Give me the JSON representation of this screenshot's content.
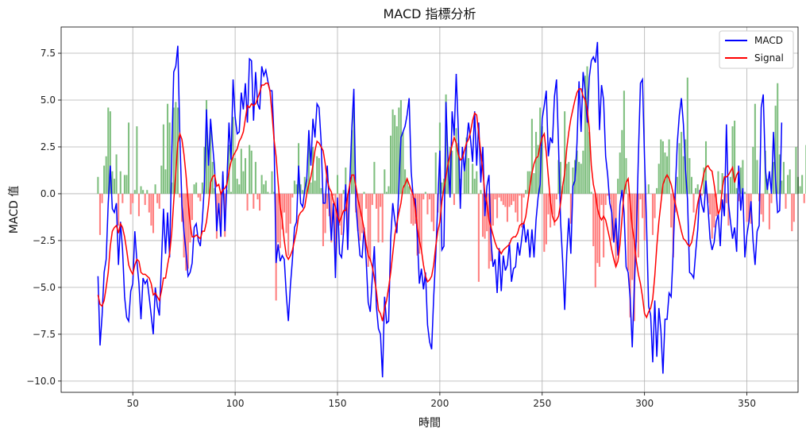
{
  "chart_data": {
    "type": "line",
    "title": "MACD 指標分析",
    "xlabel": "時間",
    "ylabel": "MACD 值",
    "xlim": [
      15,
      375
    ],
    "ylim": [
      -10.6,
      8.9
    ],
    "x_ticks": [
      50,
      100,
      150,
      200,
      250,
      300,
      350
    ],
    "y_ticks": [
      -10.0,
      -7.5,
      -5.0,
      -2.5,
      0.0,
      2.5,
      5.0,
      7.5
    ],
    "x_tick_labels": [
      "50",
      "100",
      "150",
      "200",
      "250",
      "300",
      "350"
    ],
    "y_tick_labels": [
      "−10.0",
      "−7.5",
      "−5.0",
      "−2.5",
      "0.0",
      "2.5",
      "5.0",
      "7.5"
    ],
    "grid": true,
    "legend_position": "top-right",
    "x_start": 33,
    "series": [
      {
        "name": "MACD",
        "color": "#0000ff",
        "type": "line",
        "values": [
          -4.4,
          -8.1,
          -6.5,
          -4.2,
          -3.5,
          -0.5,
          1.5,
          -0.8,
          -1.0,
          -0.5,
          -3.8,
          -1.5,
          -3.0,
          -5.5,
          -6.6,
          -6.8,
          -5.2,
          -4.8,
          -2.0,
          -3.6,
          -4.8,
          -6.7,
          -4.5,
          -4.8,
          -4.6,
          -5.5,
          -6.5,
          -7.5,
          -5.0,
          -6.0,
          -6.5,
          -3.7,
          -0.8,
          -3.2,
          -1.0,
          -3.4,
          2.0,
          6.5,
          6.8,
          7.9,
          3.0,
          -0.6,
          -2.0,
          -3.1,
          -4.4,
          -4.2,
          -3.7,
          -1.8,
          -1.6,
          -2.5,
          -2.8,
          -1.4,
          0.5,
          4.5,
          1.5,
          4.0,
          2.6,
          1.3,
          -2.0,
          -0.5,
          -2.3,
          1.2,
          -2.0,
          0.7,
          3.8,
          1.8,
          6.1,
          4.1,
          3.2,
          3.3,
          5.4,
          4.5,
          5.9,
          3.8,
          7.2,
          7.1,
          3.9,
          6.5,
          4.8,
          4.5,
          6.8,
          6.3,
          6.6,
          6.0,
          5.5,
          5.5,
          3.0,
          -3.7,
          -2.7,
          -3.6,
          -3.3,
          -3.5,
          -5.4,
          -6.8,
          -4.9,
          -3.5,
          -1.8,
          -1.5,
          1.5,
          -0.5,
          -0.7,
          0.2,
          0.8,
          3.4,
          1.5,
          4.0,
          3.0,
          4.8,
          4.6,
          2.8,
          -0.5,
          -0.5,
          1.5,
          -0.5,
          -2.5,
          -0.5,
          -4.5,
          -0.2,
          -3.2,
          -3.4,
          -2.0,
          0.5,
          -3.0,
          0.5,
          3.5,
          5.6,
          -0.6,
          -2.0,
          -3.3,
          -3.4,
          -1.8,
          -3.5,
          -5.8,
          -6.3,
          -4.5,
          -2.8,
          -6.0,
          -7.2,
          -7.5,
          -9.8,
          -5.5,
          -6.9,
          -6.8,
          -2.4,
          -0.5,
          -1.4,
          -2.1,
          0.4,
          3.0,
          3.3,
          3.6,
          4.2,
          5.1,
          1.2,
          -0.2,
          -0.3,
          -2.3,
          -4.8,
          -4.0,
          -5.1,
          -4.2,
          -7.0,
          -7.9,
          -8.3,
          -5.5,
          -3.3,
          -0.5,
          2.3,
          -3.0,
          -2.8,
          4.9,
          1.7,
          -0.2,
          4.4,
          3.1,
          6.4,
          3.5,
          -0.8,
          2.5,
          1.2,
          2.6,
          3.8,
          2.9,
          1.7,
          4.4,
          1.5,
          3.8,
          0.6,
          2.5,
          -1.2,
          0.4,
          1.0,
          -2.5,
          -3.9,
          -3.5,
          -5.3,
          -2.9,
          -5.2,
          -3.3,
          -4.1,
          -3.8,
          -2.6,
          -4.7,
          -4.0,
          -3.9,
          -2.6,
          -3.3,
          -2.4,
          -1.5,
          -2.6,
          -1.9,
          -3.4,
          -1.9,
          -3.4,
          -1.4,
          -0.2,
          0.5,
          4.0,
          4.7,
          5.5,
          2.0,
          3.0,
          2.7,
          5.2,
          6.1,
          2.5,
          -1.5,
          -3.6,
          -6.2,
          -3.2,
          -1.3,
          -3.2,
          0.4,
          0.7,
          2.7,
          6.0,
          3.3,
          6.5,
          5.5,
          3.8,
          6.2,
          7.1,
          7.3,
          7.0,
          8.1,
          3.4,
          5.8,
          5.0,
          2.0,
          1.0,
          -0.5,
          -1.0,
          -2.6,
          -1.3,
          -3.3,
          -0.6,
          0.2,
          -1.0,
          -3.9,
          -4.2,
          -5.6,
          -8.2,
          -5.0,
          -2.2,
          2.0,
          5.9,
          6.1,
          1.9,
          -1.7,
          -6.0,
          -6.5,
          -9.0,
          -5.7,
          -8.7,
          -6.1,
          -7.3,
          -9.6,
          -6.7,
          -6.7,
          -5.3,
          -5.5,
          -3.1,
          0.1,
          2.7,
          4.2,
          5.1,
          3.7,
          1.3,
          -0.3,
          -4.2,
          -4.3,
          -4.5,
          -3.1,
          -1.9,
          0.2,
          -0.6,
          -1.0,
          0.7,
          -0.7,
          -2.4,
          -3.0,
          -2.6,
          -1.5,
          -1.1,
          -2.8,
          -0.3,
          -1.2,
          3.7,
          -0.5,
          -1.5,
          -2.4,
          -1.8,
          -3.1,
          1.5,
          -0.9,
          0.3,
          -3.4,
          -2.2,
          -1.5,
          -0.4,
          -2.5,
          -3.8,
          -2.0,
          -1.7,
          4.6,
          5.3,
          1.4,
          0.2,
          1.2,
          0.0,
          3.3,
          0.8,
          -1.0,
          -0.9,
          3.8
        ]
      },
      {
        "name": "Signal",
        "color": "#ff0000",
        "type": "line",
        "values": [
          -5.4,
          -5.9,
          -6.0,
          -5.7,
          -5.0,
          -4.2,
          -2.8,
          -2.0,
          -1.8,
          -1.7,
          -2.1,
          -1.6,
          -1.8,
          -2.3,
          -3.0,
          -3.8,
          -4.1,
          -4.3,
          -3.8,
          -3.5,
          -3.6,
          -4.2,
          -4.3,
          -4.3,
          -4.4,
          -4.5,
          -4.8,
          -5.4,
          -5.3,
          -5.5,
          -5.7,
          -5.2,
          -4.5,
          -4.5,
          -3.8,
          -3.2,
          -2.1,
          -0.4,
          1.1,
          2.7,
          3.2,
          2.9,
          2.1,
          1.0,
          -0.4,
          -1.6,
          -2.3,
          -2.3,
          -2.2,
          -2.3,
          -2.4,
          -2.0,
          -2.0,
          -1.5,
          -0.6,
          0.6,
          0.9,
          1.0,
          0.4,
          0.5,
          0.0,
          0.2,
          0.3,
          0.5,
          1.2,
          1.7,
          2.0,
          2.2,
          2.4,
          2.8,
          3.0,
          3.3,
          4.0,
          4.7,
          4.6,
          4.8,
          4.7,
          4.8,
          5.1,
          5.4,
          5.8,
          5.8,
          5.9,
          5.9,
          5.5,
          4.3,
          2.9,
          2.0,
          0.6,
          -0.7,
          -1.4,
          -2.5,
          -3.3,
          -3.5,
          -3.3,
          -3.0,
          -2.5,
          -2.0,
          -1.2,
          -1.0,
          -0.9,
          -0.7,
          0.0,
          0.5,
          0.9,
          1.5,
          2.3,
          2.8,
          2.7,
          2.5,
          2.3,
          1.6,
          0.7,
          0.3,
          0.1,
          -0.4,
          -0.7,
          -1.2,
          -1.5,
          -1.2,
          -0.9,
          -0.9,
          -0.1,
          0.5,
          1.0,
          1.0,
          0.4,
          -0.3,
          -0.8,
          -1.3,
          -1.9,
          -2.7,
          -3.3,
          -3.5,
          -3.9,
          -4.5,
          -5.2,
          -6.2,
          -6.4,
          -6.8,
          -6.1,
          -5.7,
          -5.0,
          -4.2,
          -3.2,
          -2.2,
          -1.6,
          -1.0,
          -0.5,
          0.3,
          0.5,
          0.8,
          0.5,
          0.2,
          -0.1,
          -0.8,
          -1.8,
          -2.5,
          -3.0,
          -3.8,
          -4.4,
          -4.7,
          -4.6,
          -4.4,
          -3.8,
          -2.8,
          -2.0,
          -1.5,
          -0.4,
          0.3,
          0.9,
          1.6,
          2.1,
          2.6,
          3.0,
          2.7,
          2.1,
          1.8,
          1.9,
          2.3,
          2.7,
          2.9,
          3.3,
          3.9,
          4.3,
          4.2,
          3.2,
          2.2,
          1.2,
          0.0,
          -0.5,
          -1.4,
          -1.8,
          -2.2,
          -2.6,
          -2.9,
          -3.0,
          -3.2,
          -3.0,
          -2.9,
          -2.8,
          -2.7,
          -2.4,
          -2.3,
          -2.3,
          -2.1,
          -1.7,
          -1.6,
          -1.6,
          -1.2,
          -0.4,
          0.4,
          1.1,
          1.6,
          1.9,
          2.0,
          2.6,
          3.0,
          3.2,
          2.2,
          0.9,
          -0.4,
          -1.2,
          -1.5,
          -1.4,
          -1.2,
          -0.5,
          0.4,
          1.1,
          2.4,
          3.3,
          4.0,
          4.5,
          5.0,
          5.4,
          5.6,
          5.6,
          5.2,
          5.0,
          4.5,
          3.5,
          1.5,
          0.5,
          0.0,
          -0.8,
          -1.2,
          -1.4,
          -1.2,
          -1.4,
          -1.9,
          -2.4,
          -3.0,
          -3.5,
          -3.9,
          -3.6,
          -2.7,
          -1.3,
          0.1,
          0.6,
          0.8,
          -0.5,
          -1.8,
          -2.5,
          -3.6,
          -4.3,
          -4.8,
          -5.5,
          -6.4,
          -6.6,
          -6.3,
          -6.1,
          -5.6,
          -4.4,
          -2.8,
          -1.5,
          -0.5,
          0.5,
          0.8,
          1.0,
          0.8,
          0.5,
          0.0,
          -0.5,
          -1.0,
          -1.5,
          -2.0,
          -2.4,
          -2.5,
          -2.7,
          -2.8,
          -2.6,
          -2.0,
          -1.2,
          -0.5,
          0.0,
          0.5,
          1.1,
          1.4,
          1.5,
          1.3,
          1.2,
          0.5,
          -0.3,
          -1.1,
          -0.8,
          0.3,
          0.9,
          0.9,
          1.0,
          1.2,
          1.4,
          0.6,
          1.0,
          1.2
        ]
      },
      {
        "name": "",
        "type": "histogram",
        "positive_color": "#7fbf7f",
        "negative_color": "#ff7f7f",
        "values": [
          0.9,
          -2.2,
          -0.5,
          1.5,
          2.0,
          4.6,
          4.4,
          1.2,
          0.8,
          2.1,
          -1.7,
          1.2,
          -0.5,
          1.0,
          1.0,
          3.8,
          -1.1,
          -0.5,
          0.2,
          3.6,
          -1.2,
          0.4,
          0.2,
          -0.6,
          0.2,
          -1.0,
          -1.7,
          -2.1,
          0.5,
          -0.5,
          -0.8,
          1.5,
          3.7,
          1.3,
          4.8,
          3.8,
          0.6,
          4.6,
          4.9,
          4.6,
          -0.2,
          -1.5,
          -3.4,
          -4.1,
          -4.0,
          -2.6,
          -1.4,
          0.5,
          0.6,
          -0.2,
          -0.4,
          0.6,
          2.5,
          5.0,
          2.1,
          3.4,
          1.7,
          0.3,
          -2.4,
          -1.0,
          -2.3,
          1.0,
          -2.3,
          0.2,
          2.6,
          0.1,
          4.1,
          1.9,
          0.8,
          0.5,
          2.4,
          1.2,
          1.9,
          -0.9,
          2.6,
          2.3,
          -0.8,
          1.7,
          -0.3,
          -0.9,
          1.0,
          0.5,
          0.7,
          0.1,
          0.0,
          1.2,
          0.1,
          -5.7,
          -2.6,
          -2.9,
          -1.9,
          -1.0,
          -2.1,
          -3.3,
          -1.6,
          -0.2,
          0.7,
          0.5,
          2.7,
          0.5,
          0.2,
          0.9,
          0.8,
          2.9,
          0.6,
          2.5,
          0.7,
          2.0,
          1.9,
          0.3,
          -2.8,
          -2.1,
          -0.8,
          -1.2,
          -2.6,
          -0.1,
          -3.8,
          1.0,
          -1.7,
          -2.2,
          0.2,
          1.4,
          -2.9,
          0.0,
          3.4,
          4.6,
          -1.0,
          -2.0,
          -2.5,
          -2.1,
          0.1,
          -0.8,
          -3.9,
          -3.6,
          -0.6,
          1.7,
          -0.8,
          -2.6,
          -0.7,
          -2.6,
          1.3,
          0.1,
          0.4,
          3.1,
          4.5,
          4.2,
          3.6,
          4.6,
          5.0,
          3.3,
          1.3,
          0.8,
          0.4,
          -1.6,
          -1.7,
          -1.6,
          -3.3,
          -3.2,
          -3.0,
          -0.3,
          0.1,
          -1.1,
          -0.3,
          -1.5,
          -2.0,
          2.2,
          -1.0,
          3.8,
          0.6,
          0.8,
          5.3,
          1.8,
          2.5,
          2.3,
          -0.6,
          3.5,
          2.7,
          0.8,
          0.0,
          1.2,
          3.0,
          1.9,
          0.0,
          1.6,
          0.8,
          1.2,
          -4.7,
          0.2,
          -2.3,
          -2.4,
          -2.0,
          -4.0,
          -3.6,
          -1.7,
          -0.3,
          -1.3,
          -0.2,
          -0.4,
          -0.6,
          -0.7,
          -1.5,
          -0.7,
          -0.6,
          -0.4,
          -1.0,
          -1.5,
          -0.1,
          -1.8,
          -0.2,
          0.2,
          1.2,
          1.2,
          4.0,
          1.1,
          3.3,
          2.6,
          4.6,
          3.6,
          -3.1,
          -2.7,
          -1.1,
          -1.8,
          -1.1,
          -1.7,
          -0.3,
          1.8,
          1.7,
          0.4,
          4.4,
          1.6,
          1.7,
          -1.6,
          1.4,
          1.8,
          2.3,
          1.7,
          1.6,
          2.3,
          6.3,
          6.8,
          3.3,
          0.1,
          -2.8,
          -5.0,
          -3.7,
          -3.9,
          -0.6,
          -3.4,
          -0.6,
          -0.1,
          -0.3,
          -2.5,
          -2.4,
          -3.9,
          0.8,
          2.2,
          3.4,
          5.5,
          1.9,
          -4.1,
          -6.6,
          -4.6,
          -6.8,
          -2.6,
          -3.4,
          -0.3,
          -1.3,
          -2.5,
          0.0,
          0.5,
          0.0,
          -2.2,
          -1.3,
          0.3,
          1.6,
          2.9,
          2.8,
          2.2,
          2.0,
          2.9,
          -1.8,
          -3.4,
          -1.0,
          0.9,
          2.7,
          3.3,
          2.0,
          2.9,
          6.2,
          1.9,
          0.9,
          -1.0,
          0.3,
          0.5,
          0.0,
          -0.1,
          1.4,
          2.8,
          -0.5,
          -1.1,
          -2.4,
          -1.8,
          -1.2,
          1.2,
          0.2,
          1.1,
          -0.9,
          -0.5,
          -1.7,
          0.9,
          3.6,
          3.9,
          0.3,
          -0.4,
          1.4,
          1.8,
          0.1,
          -1.5,
          -1.5,
          -1.6,
          2.5,
          4.8,
          1.8,
          -0.4,
          -1.1,
          -1.5,
          2.3,
          0.8,
          -1.9,
          -0.5,
          1.7,
          4.7,
          5.9,
          2.1,
          0.7,
          1.7,
          -0.8,
          1.0,
          1.3,
          -2.0,
          -1.5,
          2.5,
          0.9,
          0.4,
          1.0,
          -0.5,
          2.6
        ]
      }
    ]
  }
}
